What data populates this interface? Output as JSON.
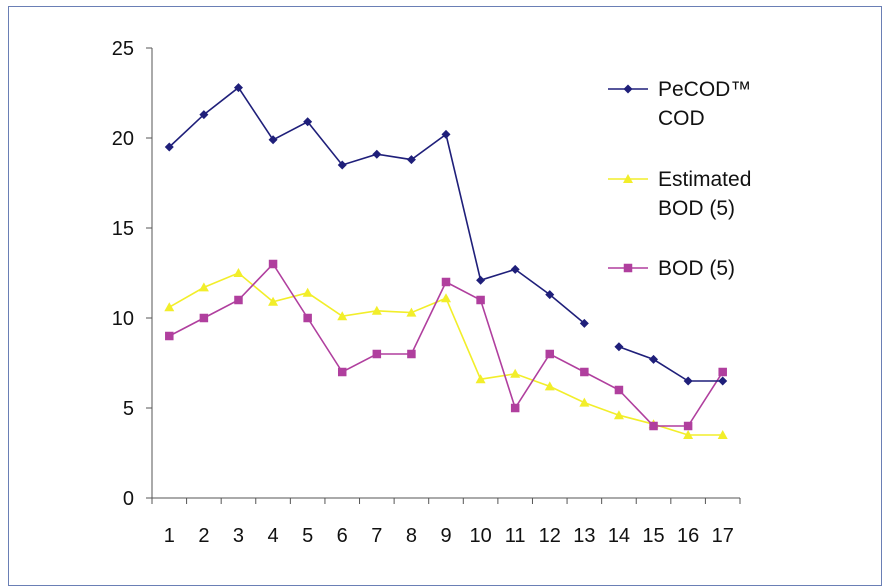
{
  "chart_data": {
    "type": "line",
    "title": "",
    "xlabel": "",
    "ylabel": "",
    "categories": [
      "1",
      "2",
      "3",
      "4",
      "5",
      "6",
      "7",
      "8",
      "9",
      "10",
      "11",
      "12",
      "13",
      "14",
      "15",
      "16",
      "17"
    ],
    "ylim": [
      0,
      25
    ],
    "yticks": [
      0,
      5,
      10,
      15,
      20,
      25
    ],
    "grid": false,
    "legend_position": "right",
    "series": [
      {
        "name_lines": [
          "PeCOD™",
          "COD"
        ],
        "name": "PeCOD™ COD",
        "color": "#1f1f7a",
        "marker": "diamond",
        "values": [
          19.5,
          21.3,
          22.8,
          19.9,
          20.9,
          18.5,
          19.1,
          18.8,
          20.2,
          12.1,
          12.7,
          11.3,
          9.7,
          8.4,
          7.7,
          6.5,
          6.5
        ],
        "gap_after_index": 12
      },
      {
        "name_lines": [
          "Estimated",
          "BOD (5)"
        ],
        "name": "Estimated BOD (5)",
        "color": "#f2ee2a",
        "marker": "triangle",
        "values": [
          10.6,
          11.7,
          12.5,
          10.9,
          11.4,
          10.1,
          10.4,
          10.3,
          11.1,
          6.6,
          6.9,
          6.2,
          5.3,
          4.6,
          4.1,
          3.5,
          3.5
        ]
      },
      {
        "name_lines": [
          "BOD (5)"
        ],
        "name": "BOD (5)",
        "color": "#b03f9e",
        "marker": "square",
        "values": [
          9,
          10,
          11,
          13,
          10,
          7,
          8,
          8,
          12,
          11,
          5,
          8,
          7,
          6,
          4,
          4,
          7
        ]
      }
    ]
  }
}
